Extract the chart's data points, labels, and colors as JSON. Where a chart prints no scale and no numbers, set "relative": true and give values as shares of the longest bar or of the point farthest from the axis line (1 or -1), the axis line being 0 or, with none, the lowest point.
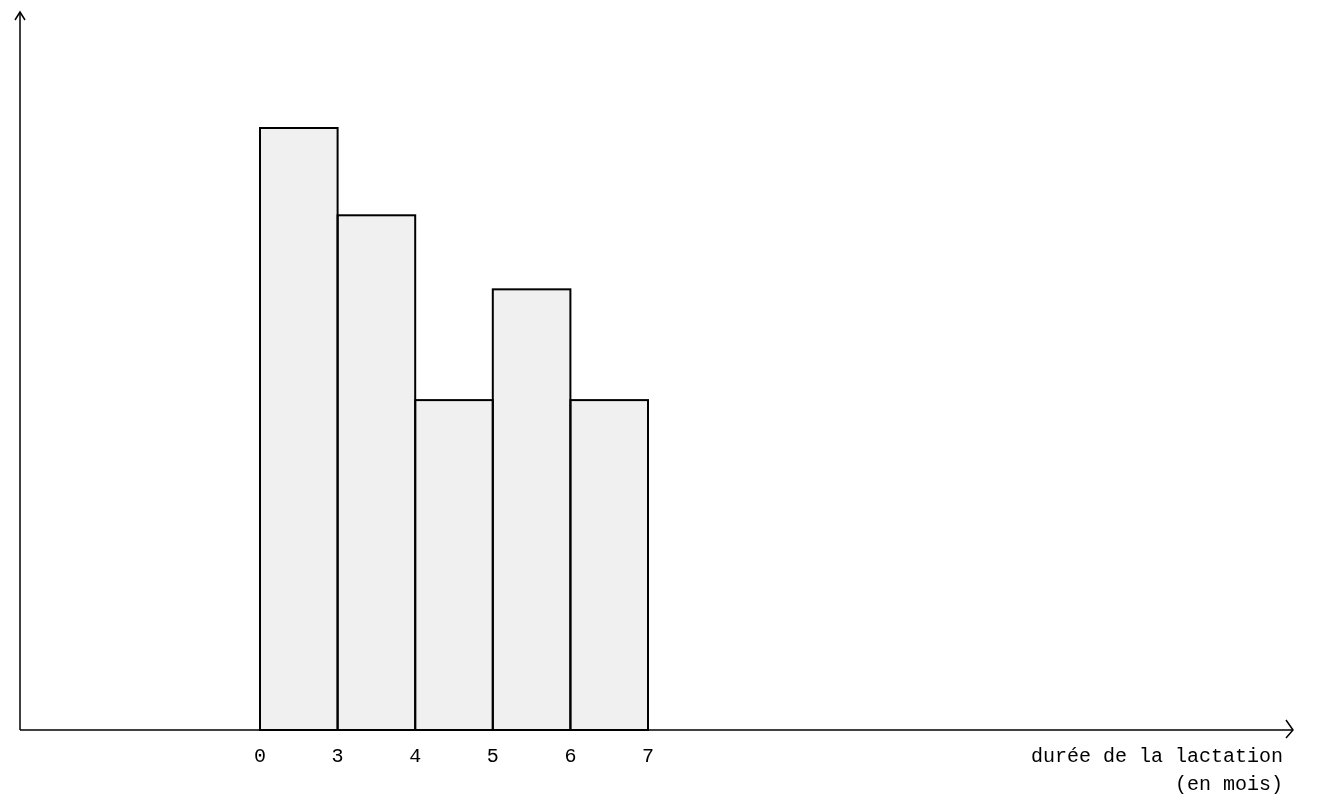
{
  "chart_data": {
    "type": "bar",
    "relative": true,
    "categories": [
      null,
      null,
      null,
      null,
      null
    ],
    "values": [
      1,
      0.855,
      0.548,
      0.732,
      0.548
    ],
    "color": "#000000",
    "annotations": [
      "0",
      "3",
      "4",
      "5",
      "6",
      "7",
      "durée de la lactation (en mois)"
    ]
  }
}
